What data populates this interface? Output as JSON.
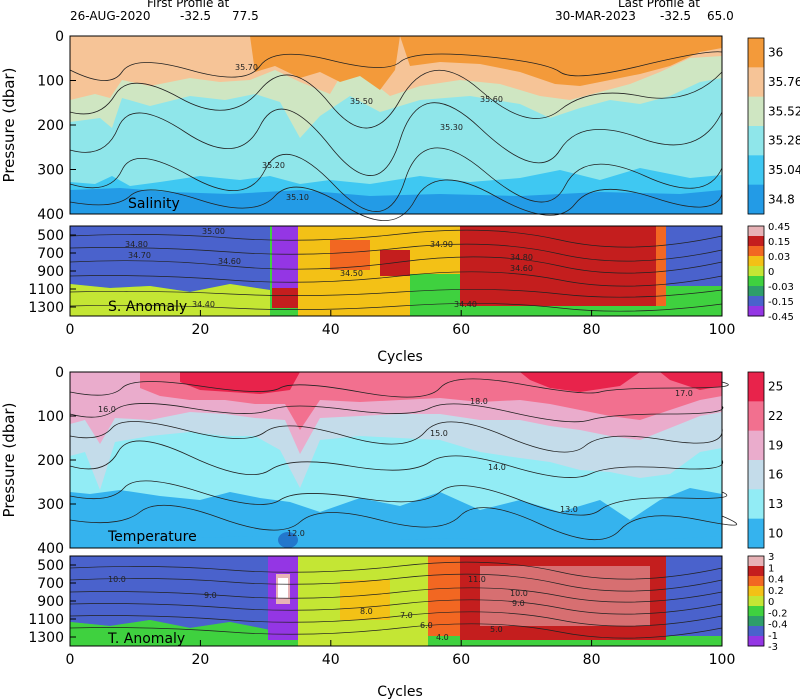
{
  "header": {
    "first_title": "First Profile at",
    "first_date": "26-AUG-2020",
    "first_lat": "-32.5",
    "first_lon": "77.5",
    "last_title": "Last Profile at",
    "last_date": "30-MAR-2023",
    "last_lat": "-32.5",
    "last_lon": "65.0"
  },
  "chart_data": [
    {
      "type": "heatmap",
      "panel_label": "Salinity",
      "ylabel": "Pressure (dbar)",
      "xlim": [
        0,
        100
      ],
      "ylim": [
        400,
        0
      ],
      "y_ticks": [
        "0",
        "100",
        "200",
        "300",
        "400"
      ],
      "colorbar": {
        "ticks": [
          "36",
          "35.76",
          "35.52",
          "35.28",
          "35.04",
          "34.8"
        ],
        "colors": [
          "#f39a3a",
          "#f6c497",
          "#cfe6c2",
          "#8fe6ea",
          "#3fc8f2",
          "#239be6"
        ]
      },
      "contour_labels": [
        "35.70",
        "35.60",
        "35.50",
        "35.30",
        "35.20",
        "35.10"
      ]
    },
    {
      "type": "heatmap",
      "panel_label": "S. Anomaly",
      "xlim": [
        0,
        100
      ],
      "ylim": [
        1400,
        400
      ],
      "y_ticks": [
        "500",
        "700",
        "900",
        "1100",
        "1300"
      ],
      "colorbar": {
        "ticks": [
          "0.45",
          "0.15",
          "0.03",
          "0",
          "-0.03",
          "-0.15",
          "-0.45"
        ],
        "colors": [
          "#e7b2b6",
          "#c41e1e",
          "#f26722",
          "#f3c116",
          "#c4e634",
          "#3fd13f",
          "#2e9d6b",
          "#4a62cc",
          "#9436e4"
        ]
      },
      "contour_labels": [
        "35.00",
        "34.80",
        "34.70",
        "34.60",
        "34.50",
        "34.40",
        "34.90"
      ]
    },
    {
      "type": "heatmap",
      "panel_label": "Temperature",
      "ylabel": "Pressure (dbar)",
      "xlim": [
        0,
        100
      ],
      "ylim": [
        400,
        0
      ],
      "y_ticks": [
        "0",
        "100",
        "200",
        "300",
        "400"
      ],
      "colorbar": {
        "ticks": [
          "25",
          "22",
          "19",
          "16",
          "13",
          "10"
        ],
        "colors": [
          "#e8234b",
          "#f2708f",
          "#eaaccc",
          "#c4dcea",
          "#92ecf5",
          "#35b3ee"
        ]
      },
      "contour_labels": [
        "16.0",
        "17.0",
        "18.0",
        "15.0",
        "14.0",
        "13.0",
        "12.0"
      ]
    },
    {
      "type": "heatmap",
      "panel_label": "T. Anomaly",
      "xlabel": "Cycles",
      "xlim": [
        0,
        100
      ],
      "ylim": [
        1400,
        400
      ],
      "y_ticks": [
        "500",
        "700",
        "900",
        "1100",
        "1300"
      ],
      "x_ticks": [
        "0",
        "20",
        "40",
        "60",
        "80",
        "100"
      ],
      "colorbar": {
        "ticks": [
          "3",
          "1",
          "0.4",
          "0.2",
          "0",
          "-0.2",
          "-0.4",
          "-1",
          "-3"
        ],
        "colors": [
          "#e7b2b6",
          "#c41e1e",
          "#f26722",
          "#f3c116",
          "#c4e634",
          "#3fd13f",
          "#2e9d6b",
          "#4a62cc",
          "#9436e4"
        ]
      },
      "contour_labels": [
        "10.0",
        "9.0",
        "8.0",
        "7.0",
        "6.0",
        "5.0",
        "4.0",
        "11.0"
      ]
    }
  ],
  "xlabel_top": "Cycles"
}
